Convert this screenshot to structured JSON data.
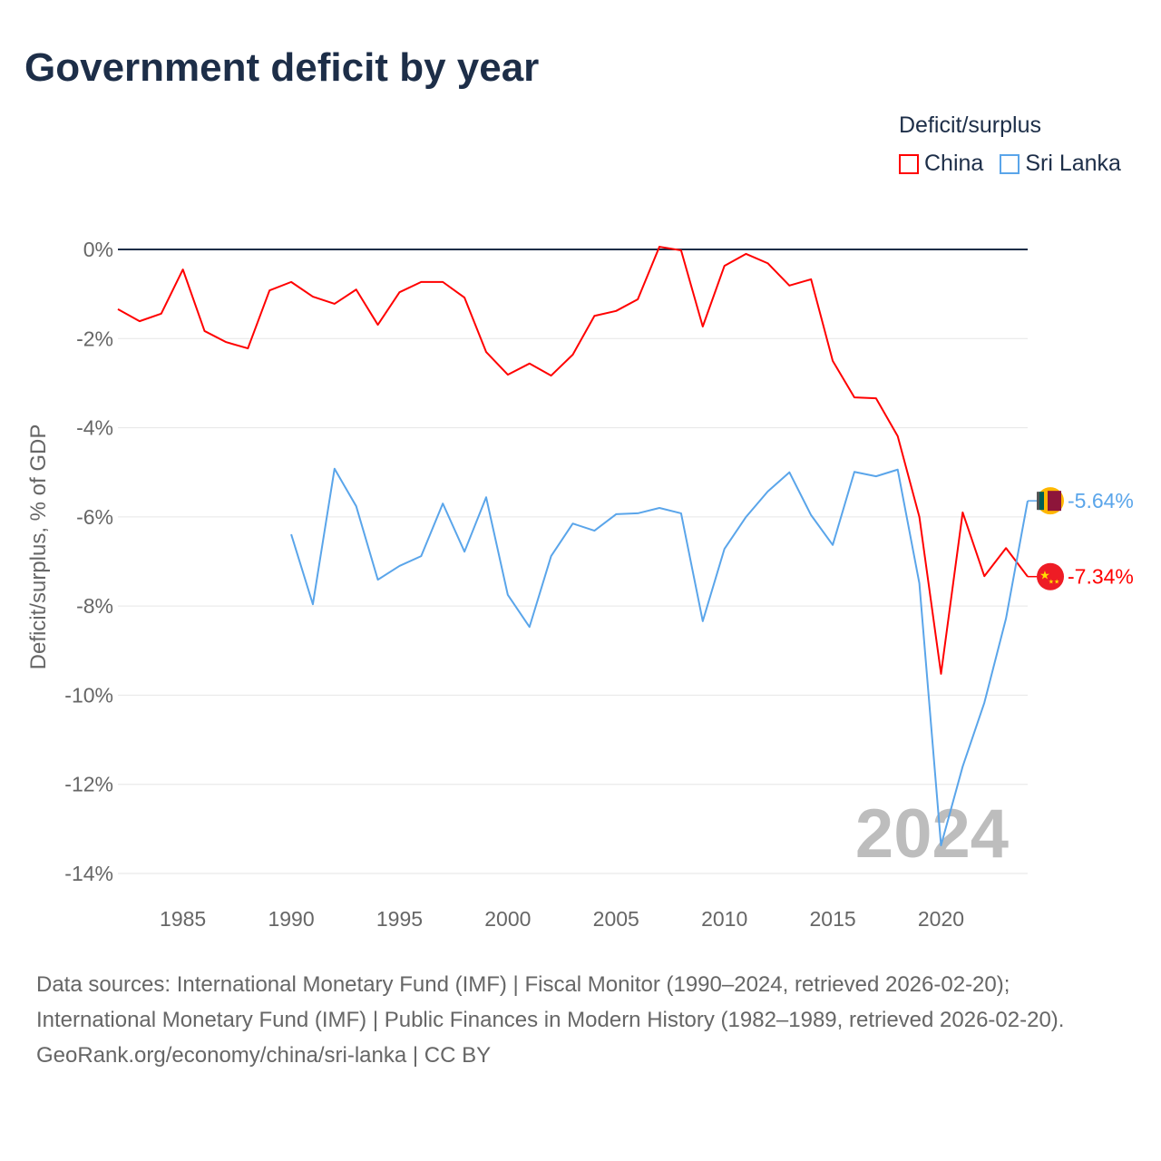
{
  "title": "Government deficit by year",
  "legend": {
    "title": "Deficit/surplus",
    "items": [
      {
        "name": "China",
        "color": "#ff0000"
      },
      {
        "name": "Sri Lanka",
        "color": "#5aa5ea"
      }
    ]
  },
  "year_label": "2024",
  "footer": {
    "sources": "Data sources: International Monetary Fund (IMF) | Fiscal Monitor (1990–2024, retrieved 2026-02-20); International Monetary Fund (IMF) | Public Finances in Modern History (1982–1989, retrieved 2026-02-20).",
    "credit": "GeoRank.org/economy/china/sri-lanka | CC BY"
  },
  "chart_data": {
    "type": "line",
    "title": "Government deficit by year",
    "xlabel": "",
    "ylabel": "Deficit/surplus, % of GDP",
    "xlim": [
      1982,
      2024
    ],
    "ylim": [
      -14,
      0
    ],
    "yticks": [
      0,
      -2,
      -4,
      -6,
      -8,
      -10,
      -12,
      -14
    ],
    "ytick_labels": [
      "0%",
      "-2%",
      "-4%",
      "-6%",
      "-8%",
      "-10%",
      "-12%",
      "-14%"
    ],
    "xticks": [
      1985,
      1990,
      1995,
      2000,
      2005,
      2010,
      2015,
      2020
    ],
    "xtick_labels": [
      "1985",
      "1990",
      "1995",
      "2000",
      "2005",
      "2010",
      "2015",
      "2020"
    ],
    "grid": true,
    "legend_position": "top-right",
    "series": [
      {
        "name": "China",
        "color": "#ff0000",
        "end_label": "-7.34%",
        "flag": "china-flag",
        "x": [
          1982,
          1983,
          1984,
          1985,
          1986,
          1987,
          1988,
          1989,
          1990,
          1991,
          1992,
          1993,
          1994,
          1995,
          1996,
          1997,
          1998,
          1999,
          2000,
          2001,
          2002,
          2003,
          2004,
          2005,
          2006,
          2007,
          2008,
          2009,
          2010,
          2011,
          2012,
          2013,
          2014,
          2015,
          2016,
          2017,
          2018,
          2019,
          2020,
          2021,
          2022,
          2023,
          2024
        ],
        "values": [
          -1.34,
          -1.61,
          -1.44,
          -0.45,
          -1.83,
          -2.08,
          -2.22,
          -0.92,
          -0.73,
          -1.06,
          -1.22,
          -0.9,
          -1.69,
          -0.96,
          -0.73,
          -0.73,
          -1.08,
          -2.3,
          -2.81,
          -2.56,
          -2.83,
          -2.36,
          -1.49,
          -1.38,
          -1.12,
          0.06,
          -0.02,
          -1.73,
          -0.37,
          -0.1,
          -0.31,
          -0.81,
          -0.67,
          -2.5,
          -3.32,
          -3.34,
          -4.19,
          -6.0,
          -9.52,
          -5.9,
          -7.33,
          -6.7,
          -7.34
        ]
      },
      {
        "name": "Sri Lanka",
        "color": "#5aa5ea",
        "end_label": "-5.64%",
        "flag": "sri-lanka-flag",
        "x": [
          1990,
          1991,
          1992,
          1993,
          1994,
          1995,
          1996,
          1997,
          1998,
          1999,
          2000,
          2001,
          2002,
          2003,
          2004,
          2005,
          2006,
          2007,
          2008,
          2009,
          2010,
          2011,
          2012,
          2013,
          2014,
          2015,
          2016,
          2017,
          2018,
          2019,
          2020,
          2021,
          2022,
          2023,
          2024
        ],
        "values": [
          -6.39,
          -7.96,
          -4.92,
          -5.76,
          -7.41,
          -7.1,
          -6.88,
          -5.7,
          -6.78,
          -5.56,
          -7.75,
          -8.47,
          -6.88,
          -6.15,
          -6.31,
          -5.94,
          -5.92,
          -5.8,
          -5.92,
          -8.34,
          -6.72,
          -6.0,
          -5.43,
          -5.0,
          -5.96,
          -6.63,
          -4.99,
          -5.09,
          -4.94,
          -7.49,
          -13.37,
          -11.6,
          -10.17,
          -8.28,
          -5.64
        ]
      }
    ]
  }
}
